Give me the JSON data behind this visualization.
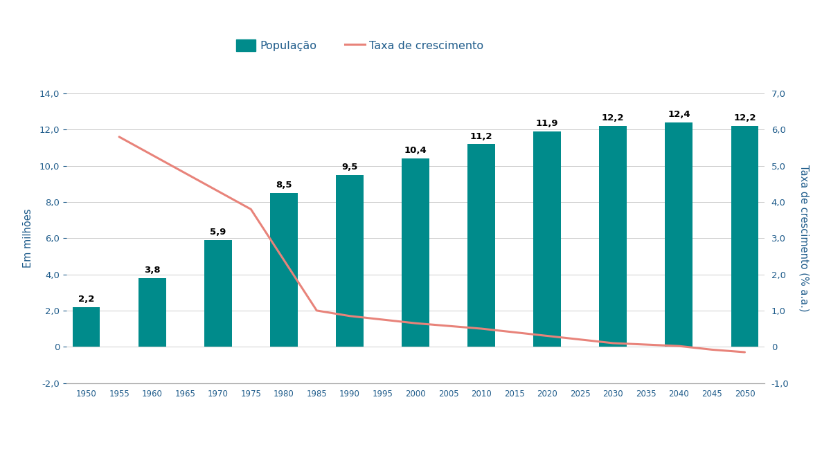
{
  "bar_years": [
    1950,
    1960,
    1970,
    1980,
    1990,
    2000,
    2010,
    2020,
    2030,
    2040,
    2050
  ],
  "bar_values": [
    2.2,
    3.8,
    5.9,
    8.5,
    9.5,
    10.4,
    11.2,
    11.9,
    12.2,
    12.4,
    12.2
  ],
  "bar_labels": [
    "2,2",
    "3,8",
    "5,9",
    "8,5",
    "9,5",
    "10,4",
    "11,2",
    "11,9",
    "12,2",
    "12,4",
    "12,2"
  ],
  "line_years": [
    1955,
    1975,
    1985,
    1990,
    2000,
    2010,
    2020,
    2030,
    2040,
    2045,
    2050
  ],
  "line_values": [
    5.8,
    3.8,
    1.0,
    0.85,
    0.65,
    0.5,
    0.3,
    0.1,
    0.02,
    -0.08,
    -0.15
  ],
  "bar_color": "#008B8B",
  "line_color": "#E8837A",
  "ylabel_left": "Em milhões",
  "ylabel_right": "Taxa de crescimento (% a.a.)",
  "ylim_left": [
    -2.0,
    14.0
  ],
  "ylim_right": [
    -1.0,
    7.0
  ],
  "yticks_left": [
    -2.0,
    0,
    2.0,
    4.0,
    6.0,
    8.0,
    10.0,
    12.0,
    14.0
  ],
  "ytick_labels_left": [
    "-2,0",
    "0",
    "2,0",
    "4,0",
    "6,0",
    "8,0",
    "10,0",
    "12,0",
    "14,0"
  ],
  "yticks_right": [
    -1.0,
    0,
    1.0,
    2.0,
    3.0,
    4.0,
    5.0,
    6.0,
    7.0
  ],
  "ytick_labels_right": [
    "-1,0",
    "0",
    "1,0",
    "2,0",
    "3,0",
    "4,0",
    "5,0",
    "6,0",
    "7,0"
  ],
  "xticks": [
    1950,
    1955,
    1960,
    1965,
    1970,
    1975,
    1980,
    1985,
    1990,
    1995,
    2000,
    2005,
    2010,
    2015,
    2020,
    2025,
    2030,
    2035,
    2040,
    2045,
    2050
  ],
  "legend_pop": "População",
  "legend_taxa": "Taxa de crescimento",
  "axis_color": "#1F5C8B",
  "background_color": "#FFFFFF",
  "bar_width": 4.2
}
